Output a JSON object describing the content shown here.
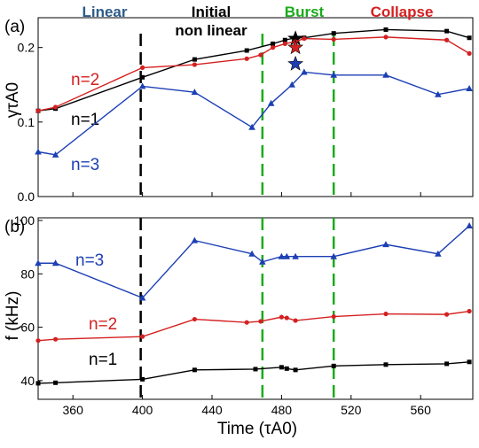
{
  "chart_data": [
    {
      "panel_label": "(a)",
      "type": "line",
      "ylabel": "γτA0",
      "ylim": [
        0,
        0.24
      ],
      "yticks": [
        "0.0",
        "0.1",
        "0.2"
      ],
      "xlim": [
        340,
        590
      ],
      "phases": [
        {
          "label": "Linear",
          "color": "#2e5c8a"
        },
        {
          "label": "Initial",
          "label2": "non linear",
          "color": "#000000"
        },
        {
          "label": "Burst",
          "color": "#1aab1a"
        },
        {
          "label": "Collapse",
          "color": "#d42020"
        }
      ],
      "vlines": [
        {
          "x": 399,
          "color": "#000000"
        },
        {
          "x": 469,
          "color": "#1aab1a"
        },
        {
          "x": 510,
          "color": "#1aab1a"
        }
      ],
      "series": [
        {
          "name": "n=1",
          "color": "#000000",
          "marker": "square",
          "x": [
            340,
            350,
            400,
            430,
            460,
            475,
            482,
            488,
            493,
            510,
            540,
            575,
            588
          ],
          "y": [
            0.115,
            0.118,
            0.16,
            0.184,
            0.196,
            0.205,
            0.21,
            0.213,
            0.213,
            0.219,
            0.224,
            0.222,
            0.213
          ],
          "star": {
            "x": 488,
            "y": 0.212
          }
        },
        {
          "name": "n=2",
          "color": "#d42020",
          "marker": "circle",
          "x": [
            340,
            350,
            400,
            430,
            460,
            468,
            475,
            482,
            488,
            493,
            510,
            540,
            575,
            588
          ],
          "y": [
            0.115,
            0.12,
            0.173,
            0.177,
            0.185,
            0.19,
            0.2,
            0.205,
            0.208,
            0.212,
            0.211,
            0.214,
            0.21,
            0.192
          ],
          "star": {
            "x": 488,
            "y": 0.2
          }
        },
        {
          "name": "n=3",
          "color": "#1c3fb4",
          "marker": "triangle",
          "x": [
            340,
            350,
            400,
            430,
            463,
            474,
            486,
            493,
            510,
            540,
            570,
            588
          ],
          "y": [
            0.06,
            0.056,
            0.148,
            0.14,
            0.093,
            0.125,
            0.15,
            0.167,
            0.163,
            0.163,
            0.137,
            0.145
          ],
          "star": {
            "x": 488,
            "y": 0.178
          }
        }
      ]
    },
    {
      "panel_label": "(b)",
      "type": "line",
      "ylabel": "f (kHz)",
      "xlabel": "Time (τA0)",
      "ylim": [
        33,
        101
      ],
      "yticks": [
        "40",
        "60",
        "80",
        "100"
      ],
      "xlim": [
        340,
        590
      ],
      "xticks": [
        "360",
        "400",
        "440",
        "480",
        "520",
        "560"
      ],
      "vlines": [
        {
          "x": 399,
          "color": "#000000"
        },
        {
          "x": 469,
          "color": "#1aab1a"
        },
        {
          "x": 510,
          "color": "#1aab1a"
        }
      ],
      "series": [
        {
          "name": "n=1",
          "color": "#000000",
          "marker": "square",
          "x": [
            340,
            350,
            400,
            430,
            465,
            480,
            483,
            488,
            510,
            540,
            575,
            588
          ],
          "y": [
            39.0,
            39.2,
            40.5,
            44.0,
            44.3,
            45.0,
            44.5,
            44.0,
            45.5,
            46.0,
            46.3,
            47.0
          ]
        },
        {
          "name": "n=2",
          "color": "#d42020",
          "marker": "circle",
          "x": [
            340,
            350,
            400,
            430,
            460,
            468,
            480,
            483,
            488,
            510,
            540,
            575,
            588
          ],
          "y": [
            55.0,
            55.5,
            56.5,
            63.0,
            61.8,
            62.2,
            63.8,
            63.5,
            62.5,
            64.0,
            65.0,
            64.8,
            66.0
          ]
        },
        {
          "name": "n=3",
          "color": "#1c3fb4",
          "marker": "triangle",
          "x": [
            340,
            350,
            400,
            430,
            463,
            469,
            480,
            483,
            488,
            510,
            540,
            570,
            588
          ],
          "y": [
            84.0,
            84.0,
            71.0,
            92.5,
            87.5,
            84.5,
            86.5,
            86.5,
            86.5,
            86.5,
            91.0,
            87.5,
            98.0
          ]
        }
      ]
    }
  ]
}
